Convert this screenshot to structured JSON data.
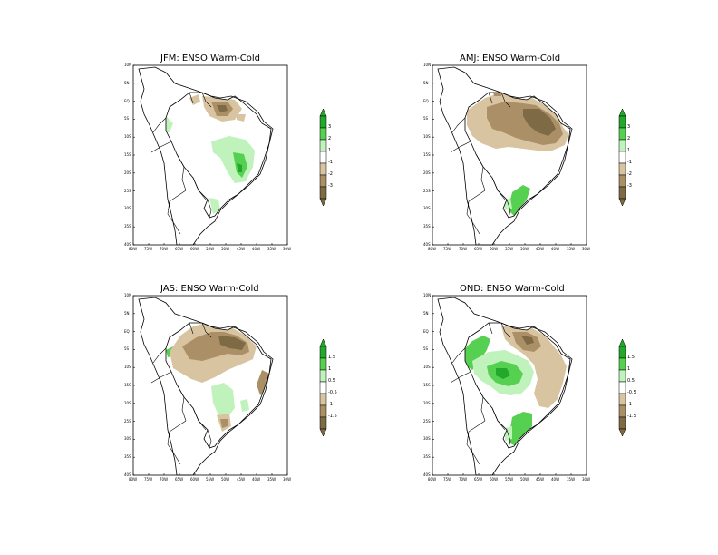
{
  "palette": {
    "green_dark": "#22a82a",
    "green_mid": "#56d050",
    "green_light": "#c0f2bc",
    "white": "#ffffff",
    "brown_light": "#d8c4a0",
    "brown_mid": "#ab9067",
    "brown_dark": "#7e6a44",
    "border": "#000000"
  },
  "panels": [
    {
      "id": "jfm",
      "title": "JFM: ENSO Warm-Cold",
      "lat_labels": [
        "10N",
        "5N",
        "EQ",
        "5S",
        "10S",
        "15S",
        "20S",
        "25S",
        "30S",
        "35S",
        "40S"
      ],
      "lon_labels": [
        "80W",
        "75W",
        "70W",
        "65W",
        "60W",
        "55W",
        "50W",
        "45W",
        "40W",
        "35W",
        "30W"
      ],
      "colorbar_labels": [
        "3",
        "2",
        "1",
        "-1",
        "-2",
        "-3"
      ]
    },
    {
      "id": "amj",
      "title": "AMJ: ENSO Warm-Cold",
      "lat_labels": [
        "10N",
        "5N",
        "EQ",
        "5S",
        "10S",
        "15S",
        "20S",
        "25S",
        "30S",
        "35S",
        "40S"
      ],
      "lon_labels": [
        "80W",
        "75W",
        "70W",
        "65W",
        "60W",
        "55W",
        "50W",
        "45W",
        "40W",
        "35W",
        "30W"
      ],
      "colorbar_labels": [
        "3",
        "2",
        "1",
        "-1",
        "-2",
        "-3"
      ]
    },
    {
      "id": "jas",
      "title": "JAS: ENSO Warm-Cold",
      "lat_labels": [
        "10N",
        "5N",
        "EQ",
        "5S",
        "10S",
        "15S",
        "20S",
        "25S",
        "30S",
        "35S",
        "40S"
      ],
      "lon_labels": [
        "80W",
        "75W",
        "70W",
        "65W",
        "60W",
        "55W",
        "50W",
        "45W",
        "40W",
        "35W",
        "30W"
      ],
      "colorbar_labels": [
        "1.5",
        "1",
        "0.5",
        "-0.5",
        "-1",
        "-1.5"
      ]
    },
    {
      "id": "ond",
      "title": "OND: ENSO Warm-Cold",
      "lat_labels": [
        "10N",
        "5N",
        "EQ",
        "5S",
        "10S",
        "15S",
        "20S",
        "25S",
        "30S",
        "35S",
        "40S"
      ],
      "lon_labels": [
        "80W",
        "75W",
        "70W",
        "65W",
        "60W",
        "55W",
        "50W",
        "45W",
        "40W",
        "35W",
        "30W"
      ],
      "colorbar_labels": [
        "1.5",
        "1",
        "0.5",
        "-0.5",
        "-1",
        "-1.5"
      ]
    }
  ]
}
